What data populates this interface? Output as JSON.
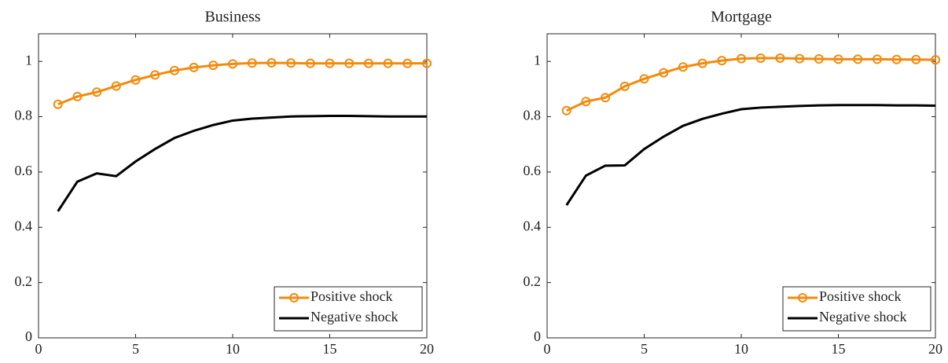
{
  "chart_data": [
    {
      "type": "line",
      "title": "Business",
      "x": [
        1,
        2,
        3,
        4,
        5,
        6,
        7,
        8,
        9,
        10,
        11,
        12,
        13,
        14,
        15,
        16,
        17,
        18,
        19,
        20
      ],
      "series": [
        {
          "name": "Positive shock",
          "color": "#f28a0c",
          "marker": "circle",
          "values": [
            0.845,
            0.873,
            0.889,
            0.911,
            0.933,
            0.951,
            0.967,
            0.978,
            0.986,
            0.991,
            0.994,
            0.995,
            0.994,
            0.993,
            0.993,
            0.993,
            0.993,
            0.993,
            0.993,
            0.993
          ]
        },
        {
          "name": "Negative shock",
          "color": "#000000",
          "marker": "none",
          "values": [
            0.458,
            0.565,
            0.595,
            0.585,
            0.638,
            0.683,
            0.723,
            0.749,
            0.77,
            0.786,
            0.793,
            0.797,
            0.801,
            0.802,
            0.803,
            0.803,
            0.802,
            0.801,
            0.801,
            0.801
          ]
        }
      ],
      "xlim": [
        0,
        20
      ],
      "xticks": [
        0,
        5,
        10,
        15,
        20
      ],
      "ylim": [
        0,
        1.1
      ],
      "yticks": [
        0,
        0.2,
        0.4,
        0.6,
        0.8,
        1
      ],
      "grid": false,
      "legend": "lower-right"
    },
    {
      "type": "line",
      "title": "Mortgage",
      "x": [
        1,
        2,
        3,
        4,
        5,
        6,
        7,
        8,
        9,
        10,
        11,
        12,
        13,
        14,
        15,
        16,
        17,
        18,
        19,
        20
      ],
      "series": [
        {
          "name": "Positive shock",
          "color": "#f28a0c",
          "marker": "circle",
          "values": [
            0.822,
            0.855,
            0.869,
            0.91,
            0.937,
            0.959,
            0.98,
            0.993,
            1.003,
            1.01,
            1.012,
            1.012,
            1.01,
            1.009,
            1.008,
            1.008,
            1.008,
            1.007,
            1.007,
            1.006
          ]
        },
        {
          "name": "Negative shock",
          "color": "#000000",
          "marker": "none",
          "values": [
            0.48,
            0.587,
            0.623,
            0.624,
            0.683,
            0.728,
            0.767,
            0.792,
            0.811,
            0.827,
            0.833,
            0.836,
            0.839,
            0.841,
            0.842,
            0.842,
            0.842,
            0.841,
            0.841,
            0.84
          ]
        }
      ],
      "xlim": [
        0,
        20
      ],
      "xticks": [
        0,
        5,
        10,
        15,
        20
      ],
      "ylim": [
        0,
        1.1
      ],
      "yticks": [
        0,
        0.2,
        0.4,
        0.6,
        0.8,
        1
      ],
      "grid": false,
      "legend": "lower-right"
    }
  ]
}
